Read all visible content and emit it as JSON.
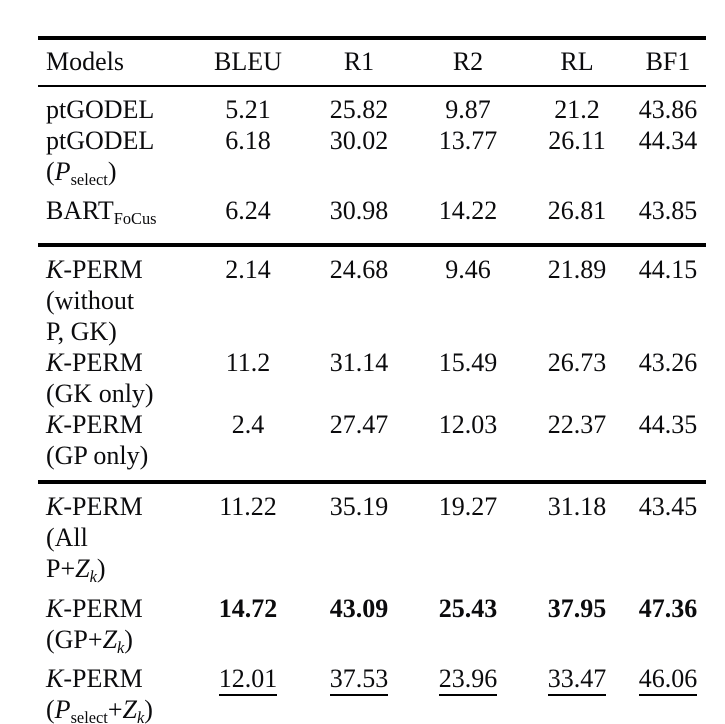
{
  "table": {
    "columns": [
      "Models",
      "BLEU",
      "R1",
      "R2",
      "RL",
      "BF1"
    ],
    "sections": [
      {
        "rows": [
          {
            "model": "ptGODEL",
            "name_lines": [
              [
                {
                  "t": "ptGODEL"
                }
              ]
            ],
            "values": [
              "5.21",
              "25.82",
              "9.87",
              "21.2",
              "43.86"
            ],
            "emphasis": "none"
          },
          {
            "model": "ptGODEL (P_select)",
            "name_lines": [
              [
                {
                  "t": "ptGODEL"
                }
              ],
              [
                {
                  "t": "("
                },
                {
                  "t": "P",
                  "s": "it"
                },
                {
                  "t": "select",
                  "s": "sub"
                },
                {
                  "t": ")"
                }
              ]
            ],
            "values": [
              "6.18",
              "30.02",
              "13.77",
              "26.11",
              "44.34"
            ],
            "emphasis": "none"
          },
          {
            "model": "BART_FoCus",
            "name_lines": [
              [
                {
                  "t": "BART"
                },
                {
                  "t": "FoCus",
                  "s": "sub"
                }
              ]
            ],
            "values": [
              "6.24",
              "30.98",
              "14.22",
              "26.81",
              "43.85"
            ],
            "emphasis": "none"
          }
        ]
      },
      {
        "rows": [
          {
            "model": "K-PERM (without P, GK)",
            "name_lines": [
              [
                {
                  "t": "K",
                  "s": "cal"
                },
                {
                  "t": "-PERM"
                }
              ],
              [
                {
                  "t": "(without"
                }
              ],
              [
                {
                  "t": "P, GK)"
                }
              ]
            ],
            "values": [
              "2.14",
              "24.68",
              "9.46",
              "21.89",
              "44.15"
            ],
            "emphasis": "none"
          },
          {
            "model": "K-PERM (GK only)",
            "name_lines": [
              [
                {
                  "t": "K",
                  "s": "cal"
                },
                {
                  "t": "-PERM"
                }
              ],
              [
                {
                  "t": "(GK only)"
                }
              ]
            ],
            "values": [
              "11.2",
              "31.14",
              "15.49",
              "26.73",
              "43.26"
            ],
            "emphasis": "none"
          },
          {
            "model": "K-PERM (GP only)",
            "name_lines": [
              [
                {
                  "t": "K",
                  "s": "cal"
                },
                {
                  "t": "-PERM"
                }
              ],
              [
                {
                  "t": "(GP only)"
                }
              ]
            ],
            "values": [
              "2.4",
              "27.47",
              "12.03",
              "22.37",
              "44.35"
            ],
            "emphasis": "none"
          }
        ]
      },
      {
        "rows": [
          {
            "model": "K-PERM (All P+Z_k)",
            "name_lines": [
              [
                {
                  "t": "K",
                  "s": "cal"
                },
                {
                  "t": "-PERM"
                }
              ],
              [
                {
                  "t": "(All"
                }
              ],
              [
                {
                  "t": "P+"
                },
                {
                  "t": "Z",
                  "s": "cal"
                },
                {
                  "t": "k",
                  "s": "sub it"
                },
                {
                  "t": ")"
                }
              ]
            ],
            "values": [
              "11.22",
              "35.19",
              "19.27",
              "31.18",
              "43.45"
            ],
            "emphasis": "none"
          },
          {
            "model": "K-PERM (GP+Z_k)",
            "name_lines": [
              [
                {
                  "t": "K",
                  "s": "cal"
                },
                {
                  "t": "-PERM"
                }
              ],
              [
                {
                  "t": "(GP+"
                },
                {
                  "t": "Z",
                  "s": "cal"
                },
                {
                  "t": "k",
                  "s": "sub it"
                },
                {
                  "t": ")"
                }
              ]
            ],
            "values": [
              "14.72",
              "43.09",
              "25.43",
              "37.95",
              "47.36"
            ],
            "emphasis": "bold"
          },
          {
            "model": "K-PERM (P_select+Z_k)",
            "name_lines": [
              [
                {
                  "t": "K",
                  "s": "cal"
                },
                {
                  "t": "-PERM"
                }
              ],
              [
                {
                  "t": "("
                },
                {
                  "t": "P",
                  "s": "it"
                },
                {
                  "t": "select",
                  "s": "sub"
                },
                {
                  "t": "+"
                },
                {
                  "t": "Z",
                  "s": "cal"
                },
                {
                  "t": "k",
                  "s": "sub it"
                },
                {
                  "t": ")"
                }
              ]
            ],
            "values": [
              "12.01",
              "37.53",
              "23.96",
              "33.47",
              "46.06"
            ],
            "emphasis": "underline"
          }
        ]
      }
    ]
  }
}
